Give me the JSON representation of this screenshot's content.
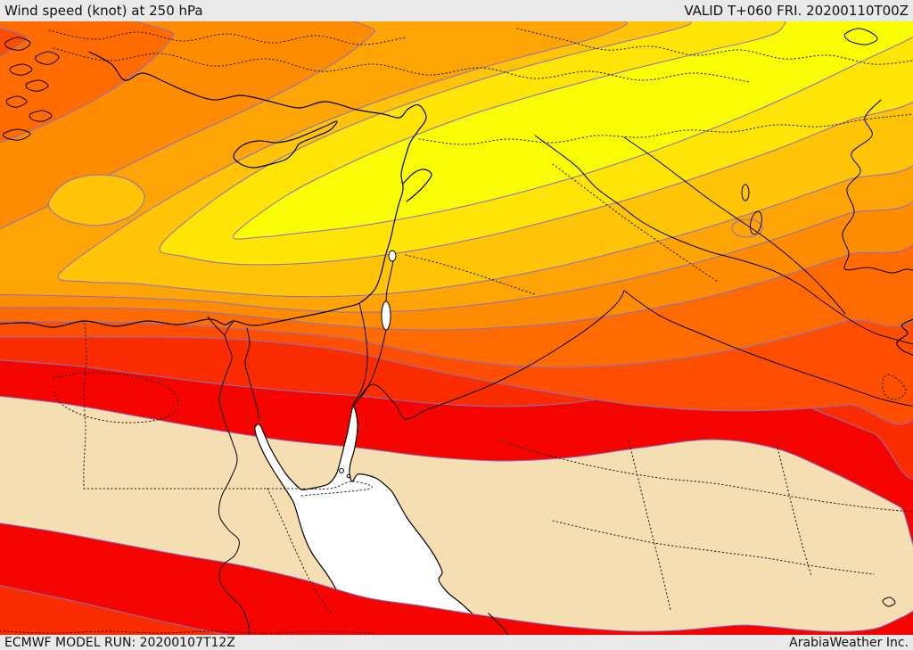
{
  "header": {
    "title": "Wind speed (knot) at 250 hPa",
    "valid_time": "VALID T+060 FRI. 20200110T00Z"
  },
  "footer": {
    "model_run": "ECMWF MODEL RUN: 20200107T12Z",
    "brand": "ArabiaWeather Inc."
  },
  "map": {
    "type": "filled-contour weather map",
    "region": "Eastern Mediterranean / Middle East",
    "palette": {
      "bar_bg": "#E9E9E9",
      "text": "#111111",
      "sea": "#FFFFFF",
      "land_low": "#F6DEB3",
      "contour_line": "#8670C8",
      "coast_line": "#000000",
      "band_1": "#F50400",
      "band_2": "#FB2C00",
      "band_3": "#FF4E00",
      "band_4": "#FF6B00",
      "band_5": "#FF8C00",
      "band_6": "#FFA405",
      "band_7": "#FFC405",
      "band_8": "#FFE405",
      "band_9": "#FAFC05"
    }
  }
}
